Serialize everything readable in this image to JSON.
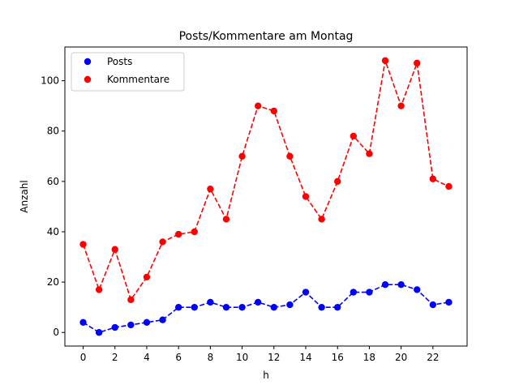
{
  "chart_data": {
    "type": "line",
    "title": "Posts/Kommentare am Montag",
    "xlabel": "h",
    "ylabel": "Anzahl",
    "xlim": [
      -1.15,
      24.15
    ],
    "ylim": [
      -5.4,
      113.4
    ],
    "grid": false,
    "legend_position": "top-left",
    "xticks": [
      0,
      2,
      4,
      6,
      8,
      10,
      12,
      14,
      16,
      18,
      20,
      22
    ],
    "yticks": [
      0,
      20,
      40,
      60,
      80,
      100
    ],
    "x": [
      0,
      1,
      2,
      3,
      4,
      5,
      6,
      7,
      8,
      9,
      10,
      11,
      12,
      13,
      14,
      15,
      16,
      17,
      18,
      19,
      20,
      21,
      22,
      23
    ],
    "series": [
      {
        "name": "Posts",
        "color": "#0000ff",
        "line_style": "dashed",
        "marker": "circle",
        "values": [
          4,
          0,
          2,
          3,
          4,
          5,
          10,
          10,
          12,
          10,
          10,
          12,
          10,
          11,
          16,
          10,
          10,
          16,
          16,
          19,
          19,
          17,
          11,
          12
        ]
      },
      {
        "name": "Kommentare",
        "color": "#ff0000",
        "line_style": "dashed",
        "marker": "circle",
        "values": [
          35,
          17,
          33,
          13,
          22,
          36,
          39,
          40,
          57,
          45,
          70,
          90,
          88,
          70,
          54,
          45,
          60,
          78,
          71,
          108,
          90,
          107,
          61,
          58
        ]
      }
    ]
  }
}
